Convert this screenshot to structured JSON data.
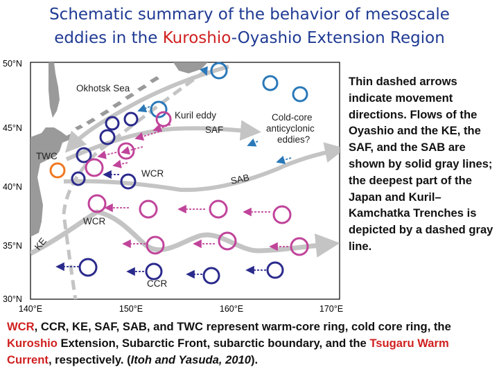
{
  "title": {
    "line1": "Schematic summary of the behavior of mesoscale",
    "line2_pre": "eddies in the ",
    "line2_red": "Kuroshio",
    "line2_post": "-Oyashio Extension Region"
  },
  "map": {
    "lat_labels": [
      "50°N",
      "45°N",
      "40°N",
      "35°N",
      "30°N"
    ],
    "lon_labels": [
      "140°E",
      "150°E",
      "160°E",
      "170°E"
    ],
    "labels": {
      "okhotsk": "Okhotsk Sea",
      "kuril_eddy": "Kuril eddy",
      "saf": "SAF",
      "cold_core_1": "Cold-core",
      "cold_core_2": "anticyclonic",
      "cold_core_3": "eddies?",
      "twc": "TWC",
      "wcr_1": "WCR",
      "sab": "SAB",
      "wcr_2": "WCR",
      "ke": "KE",
      "ccr": "CCR"
    },
    "colors": {
      "land": "#9a9a9a",
      "warm_eddy": "#c0449a",
      "cold_eddy": "#2a2a8c",
      "cyclonic_blue": "#2a78b8",
      "twc_eddy": "#f07820",
      "flow": "#c4c4c4"
    }
  },
  "side_text": "Thin dashed arrows indicate movement directions. Flows of the Oyashio and the KE, the SAF, and the SAB are shown by solid gray lines; the deepest part of the Japan and Kuril–Kamchatka Trenches is depicted by a dashed gray line.",
  "bottom": {
    "p1_red": "WCR",
    "p1": ", CCR, KE, SAF, SAB, and TWC represent warm-core ring, cold core ring, the ",
    "p2_red": "Kuroshio",
    "p2": " Extension, Subarctic Front, subarctic boundary, and the ",
    "p3_red": "Tsugaru Warm Current",
    "p3": ", respectively. (",
    "cite": "Itoh and Yasuda, 2010",
    "p4": ")."
  }
}
